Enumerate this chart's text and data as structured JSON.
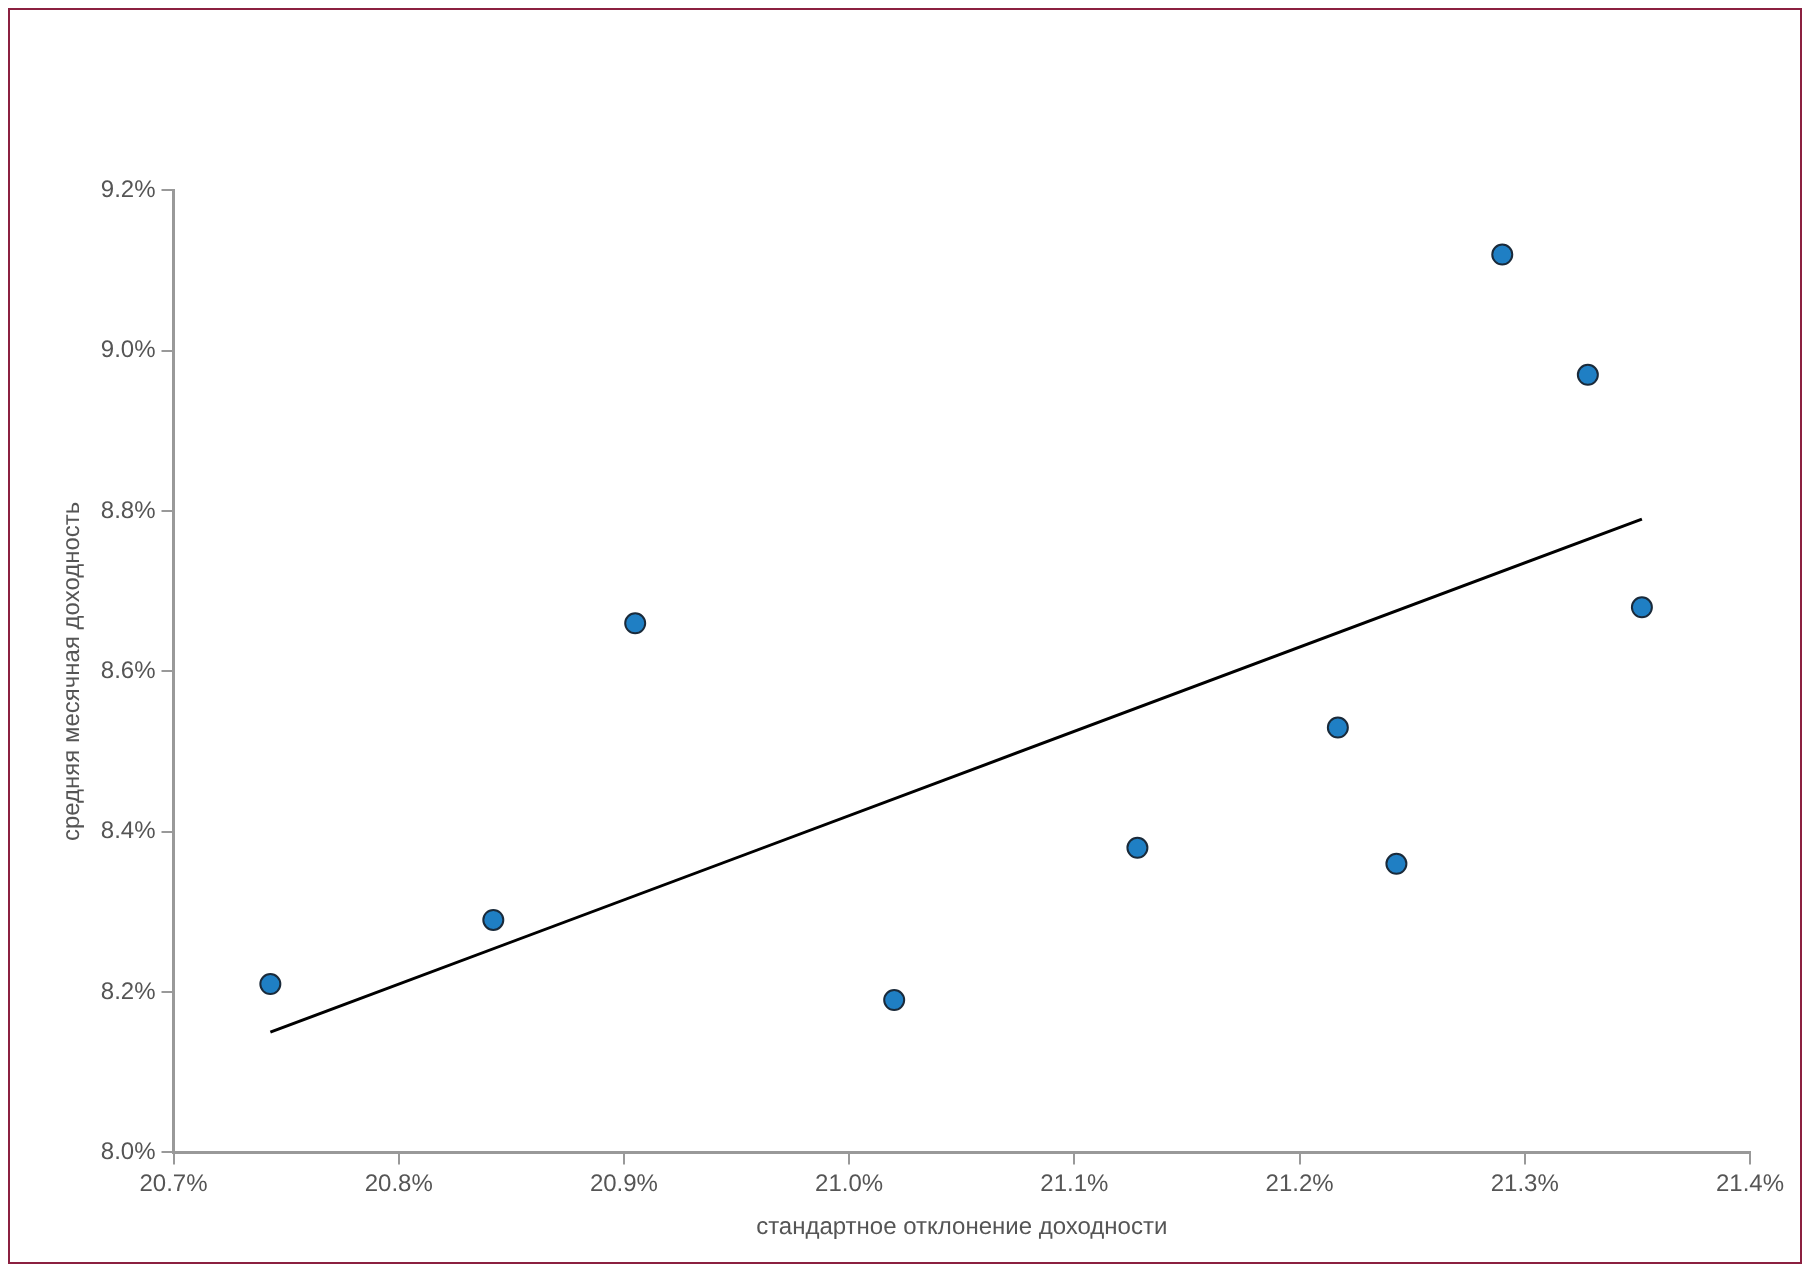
{
  "chart_data": {
    "type": "scatter",
    "xlabel": "стандартное отклонение доходности",
    "ylabel": "средняя месячная доходность",
    "series": [
      {
        "marker": "circle",
        "color": "#1f7fc4",
        "x": [
          20.743,
          20.842,
          20.905,
          21.02,
          21.128,
          21.217,
          21.243,
          21.29,
          21.328,
          21.352
        ],
        "values": [
          8.21,
          8.29,
          8.66,
          8.19,
          8.38,
          8.53,
          8.36,
          9.12,
          8.97,
          8.68
        ]
      },
      {
        "type": "line",
        "marker": "none",
        "color": "#000000",
        "x": [
          20.743,
          21.352
        ],
        "values": [
          8.15,
          8.79
        ]
      }
    ],
    "xlim": [
      20.7,
      21.4
    ],
    "xticks": [
      {
        "value": 20.7,
        "label": "20.7%"
      },
      {
        "value": 20.8,
        "label": "20.8%"
      },
      {
        "value": 20.9,
        "label": "20.9%"
      },
      {
        "value": 21.0,
        "label": "21.0%"
      },
      {
        "value": 21.1,
        "label": "21.1%"
      },
      {
        "value": 21.2,
        "label": "21.2%"
      },
      {
        "value": 21.3,
        "label": "21.3%"
      },
      {
        "value": 21.4,
        "label": "21.4%"
      }
    ],
    "ylim": [
      8.0,
      9.2
    ],
    "yticks": [
      {
        "value": 8.0,
        "label": "8.0%"
      },
      {
        "value": 8.2,
        "label": "8.2%"
      },
      {
        "value": 8.4,
        "label": "8.4%"
      },
      {
        "value": 8.6,
        "label": "8.6%"
      },
      {
        "value": 8.8,
        "label": "8.8%"
      },
      {
        "value": 9.0,
        "label": "9.0%"
      },
      {
        "value": 9.2,
        "label": "9.2%"
      }
    ],
    "grid": false,
    "legend": false
  }
}
